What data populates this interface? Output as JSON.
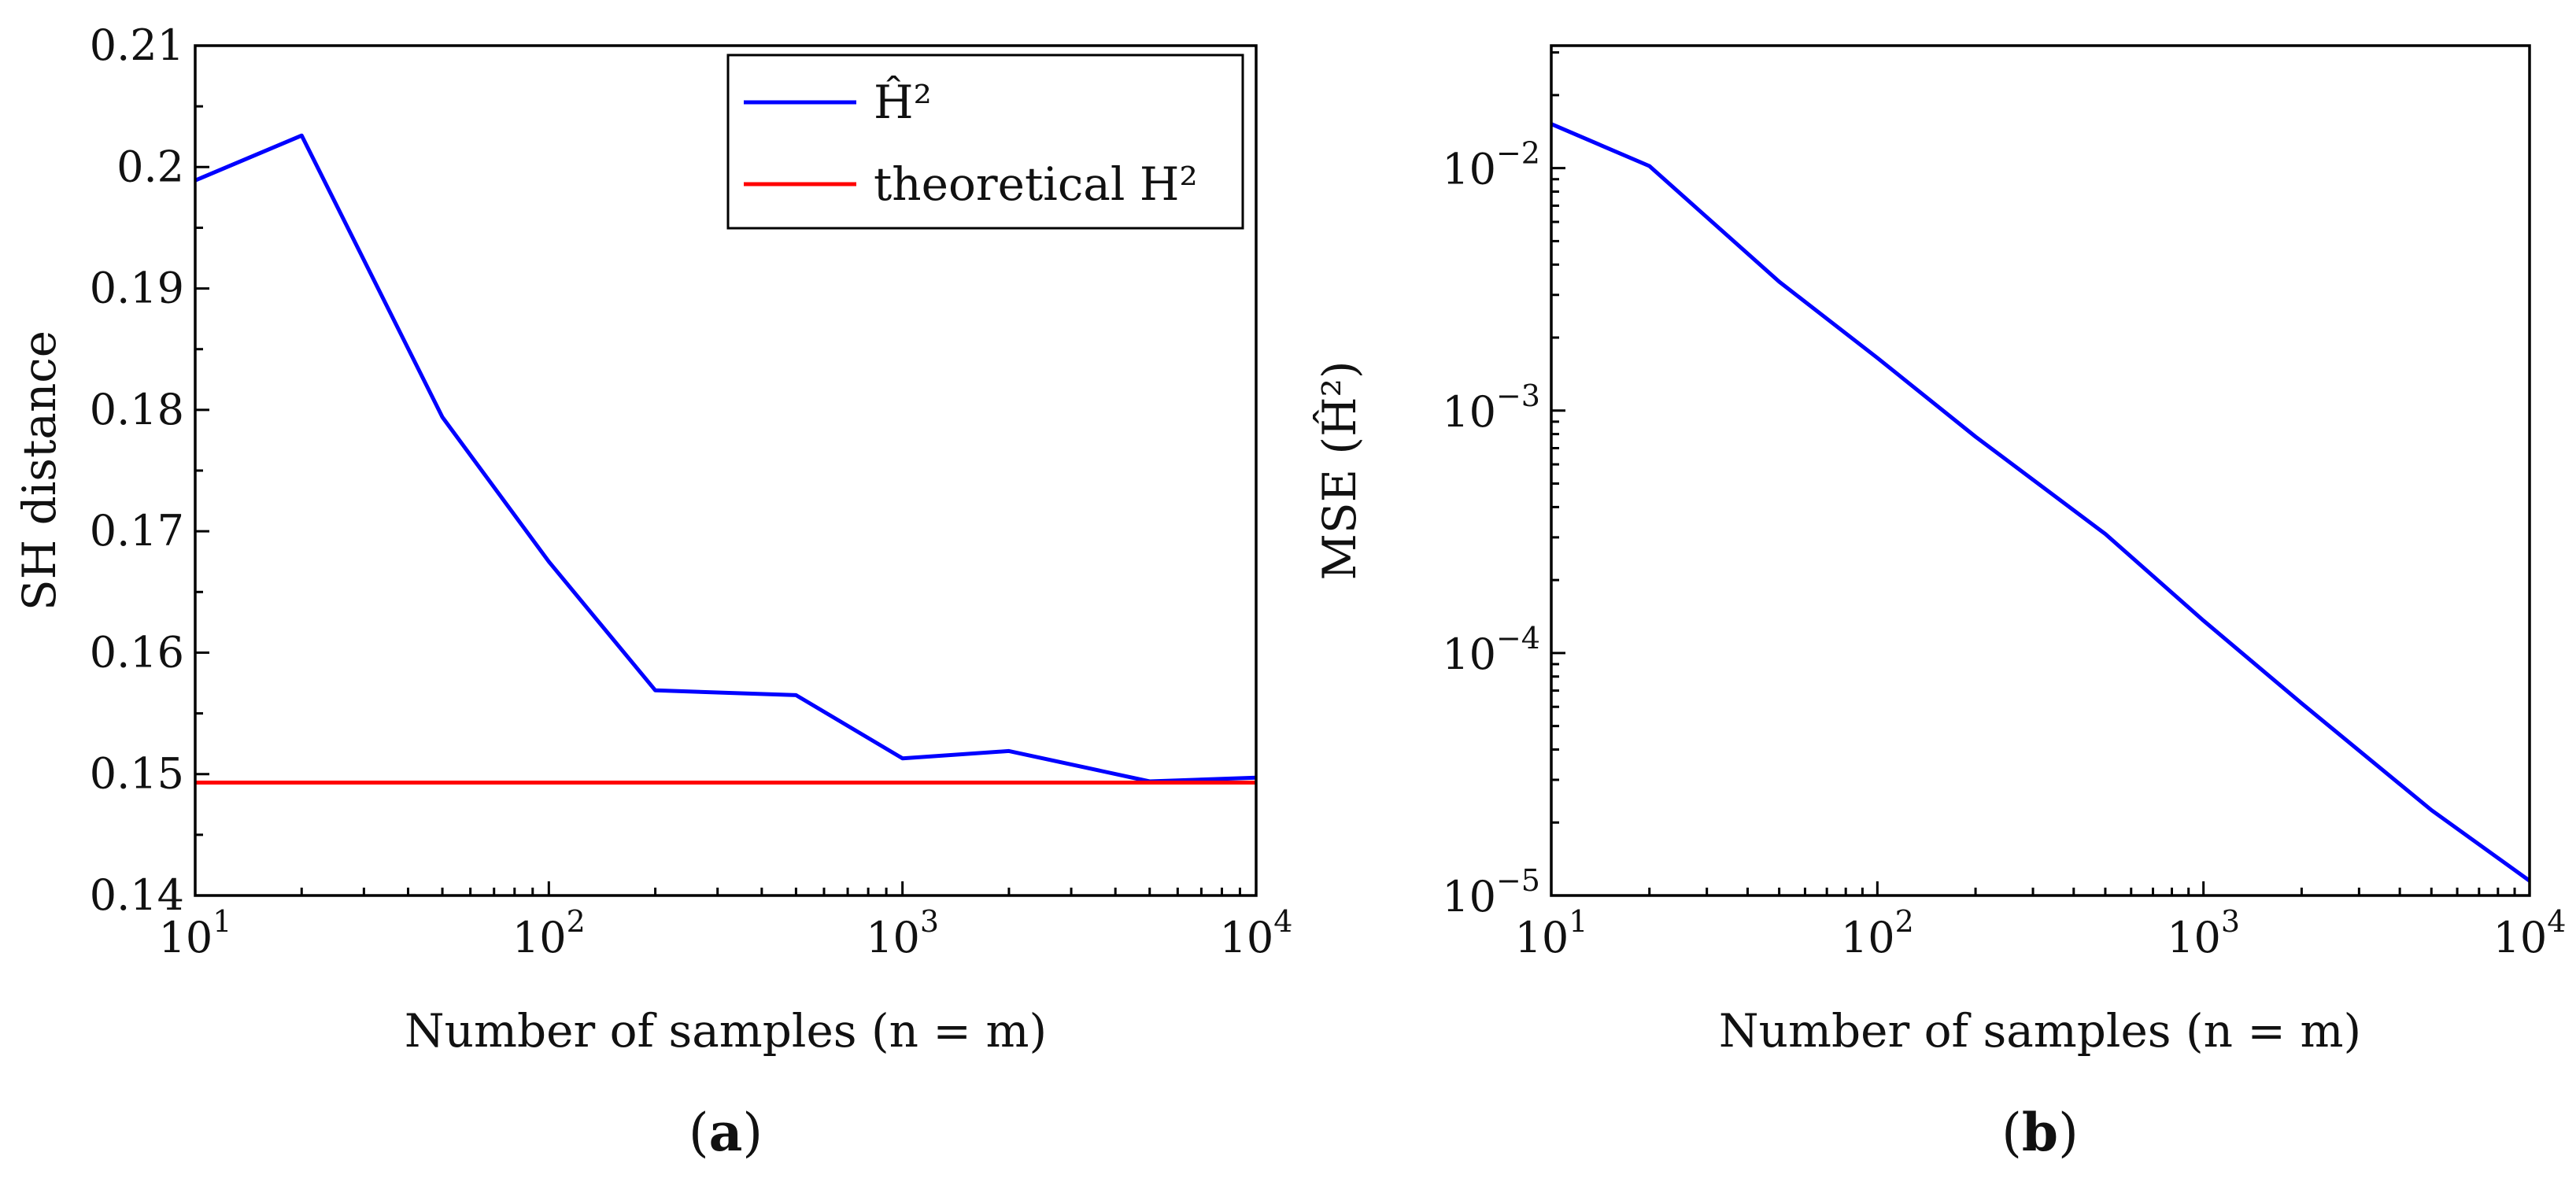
{
  "chart_data": [
    {
      "id": "a",
      "type": "line",
      "caption_letter": "a",
      "xscale": "log",
      "yscale": "linear",
      "xlim": [
        10,
        10000
      ],
      "ylim": [
        0.14,
        0.21
      ],
      "xlabel": "Number of samples (n = m)",
      "ylabel": "SH distance",
      "xticks": [
        10,
        100,
        1000,
        10000
      ],
      "xtick_exponents": [
        "1",
        "2",
        "3",
        "4"
      ],
      "yticks": [
        0.14,
        0.15,
        0.16,
        0.17,
        0.18,
        0.19,
        0.2,
        0.21
      ],
      "ytick_labels": [
        "0.14",
        "0.15",
        "0.16",
        "0.17",
        "0.18",
        "0.19",
        "0.2",
        "0.21"
      ],
      "legend": {
        "placement": "top-right",
        "entries": [
          "Ĥ²",
          "theoretical H²"
        ]
      },
      "series": [
        {
          "name": "Ĥ²",
          "color": "#0000ff",
          "x": [
            10,
            20,
            50,
            100,
            200,
            500,
            1000,
            2000,
            5000,
            10000
          ],
          "y": [
            0.1989,
            0.2026,
            0.1794,
            0.1675,
            0.1569,
            0.1565,
            0.1513,
            0.1519,
            0.1494,
            0.1497
          ]
        },
        {
          "name": "theoretical H²",
          "color": "#ff0000",
          "x": [
            10,
            10000
          ],
          "y": [
            0.1493,
            0.1493
          ]
        }
      ]
    },
    {
      "id": "b",
      "type": "line",
      "caption_letter": "b",
      "xscale": "log",
      "yscale": "log",
      "xlim": [
        10,
        10000
      ],
      "ylim": [
        1e-05,
        0.032
      ],
      "xlabel": "Number of samples (n = m)",
      "ylabel": "MSE (Ĥ²)",
      "xticks": [
        10,
        100,
        1000,
        10000
      ],
      "xtick_exponents": [
        "1",
        "2",
        "3",
        "4"
      ],
      "yticks": [
        1e-05,
        0.0001,
        0.001,
        0.01
      ],
      "ytick_exponents": [
        "−5",
        "−4",
        "−3",
        "−2"
      ],
      "series": [
        {
          "name": "MSE(Ĥ²)",
          "color": "#0000ff",
          "x": [
            10,
            20,
            50,
            100,
            200,
            500,
            1000,
            2000,
            5000,
            10000
          ],
          "y": [
            0.0152,
            0.0102,
            0.0034,
            0.00165,
            0.00078,
            0.00031,
            0.000136,
            6.2e-05,
            2.25e-05,
            1.15e-05
          ]
        }
      ]
    }
  ]
}
